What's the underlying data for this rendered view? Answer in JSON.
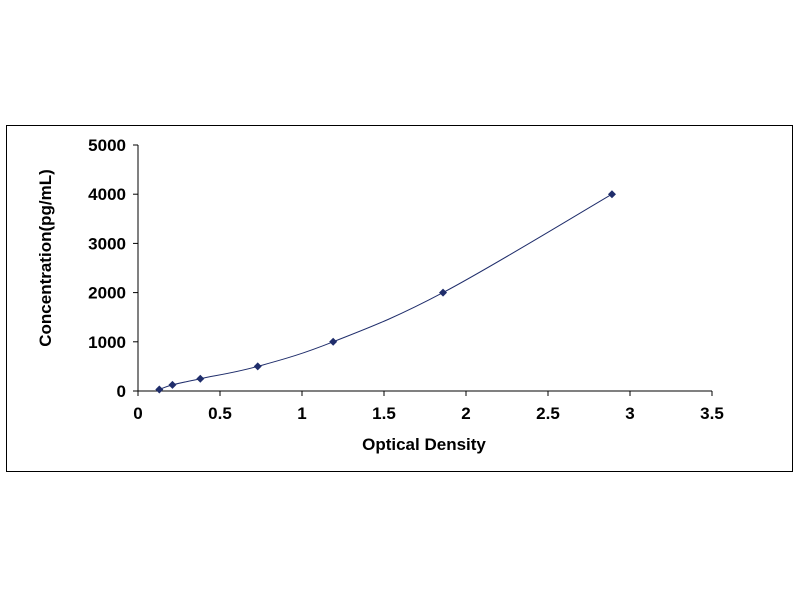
{
  "chart_data": {
    "type": "scatter",
    "title": "",
    "xlabel": "Optical Density",
    "ylabel": "Concentration(pg/mL)",
    "xlim": [
      0,
      3.5
    ],
    "ylim": [
      0,
      5000
    ],
    "x_ticks": [
      "0",
      "0.5",
      "1",
      "1.5",
      "2",
      "2.5",
      "3",
      "3.5"
    ],
    "y_ticks": [
      "0",
      "1000",
      "2000",
      "3000",
      "4000",
      "5000"
    ],
    "grid": false,
    "legend": "none",
    "marker_color": "#1f2d6b",
    "line_color": "#1f2d6b",
    "series": [
      {
        "points": [
          {
            "x": 0.13,
            "y": 31.25
          },
          {
            "x": 0.21,
            "y": 125
          },
          {
            "x": 0.38,
            "y": 250
          },
          {
            "x": 0.73,
            "y": 500
          },
          {
            "x": 1.19,
            "y": 1000
          },
          {
            "x": 1.86,
            "y": 2000
          },
          {
            "x": 2.89,
            "y": 4000
          }
        ]
      }
    ]
  }
}
